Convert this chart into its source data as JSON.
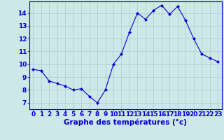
{
  "hours": [
    0,
    1,
    2,
    3,
    4,
    5,
    6,
    7,
    8,
    9,
    10,
    11,
    12,
    13,
    14,
    15,
    16,
    17,
    18,
    19,
    20,
    21,
    22,
    23
  ],
  "temps": [
    9.6,
    9.5,
    8.7,
    8.5,
    8.3,
    8.0,
    8.1,
    7.5,
    7.0,
    8.0,
    10.0,
    10.8,
    12.5,
    14.0,
    13.5,
    14.2,
    14.6,
    13.9,
    14.5,
    13.4,
    12.0,
    10.8,
    10.5,
    10.2
  ],
  "line_color": "#0000cc",
  "marker": "D",
  "marker_size": 2.0,
  "bg_color": "#cce8e8",
  "grid_color": "#aacccc",
  "axis_color": "#0000cc",
  "xlabel": "Graphe des températures (°c)",
  "xlabel_fontsize": 7.5,
  "ylabel_ticks": [
    7,
    8,
    9,
    10,
    11,
    12,
    13,
    14
  ],
  "xlim": [
    -0.5,
    23.5
  ],
  "ylim": [
    6.5,
    14.9
  ],
  "tick_fontsize": 6.5
}
